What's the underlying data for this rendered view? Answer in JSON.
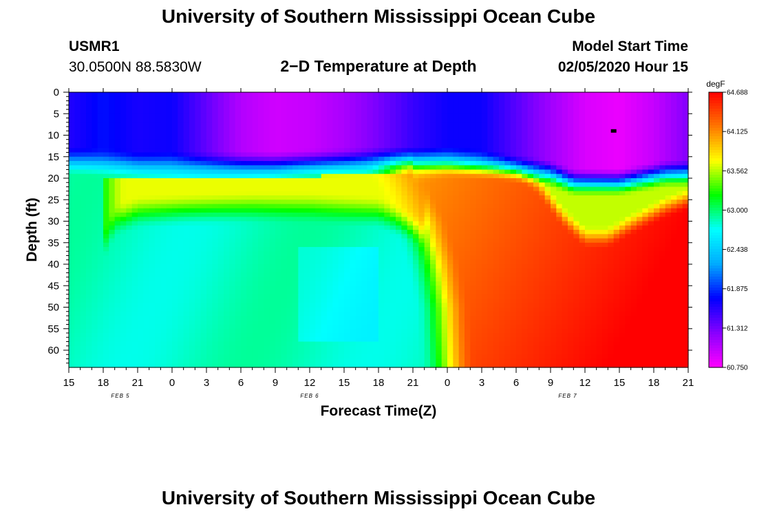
{
  "page": {
    "top_title": "University of Southern Mississippi Ocean Cube",
    "bottom_title": "University of Southern Mississippi Ocean Cube"
  },
  "station": {
    "id": "USMR1",
    "coords": "30.0500N 88.5830W"
  },
  "model": {
    "start_label": "Model Start Time",
    "start_value": "02/05/2020 Hour 15"
  },
  "chart_data": {
    "type": "heatmap",
    "title": "2−D Temperature at Depth",
    "xlabel": "Forecast Time(Z)",
    "ylabel": "Depth (ft)",
    "unit": "degF",
    "x_ticks": [
      "15",
      "18",
      "21",
      "0",
      "3",
      "6",
      "9",
      "12",
      "15",
      "18",
      "21",
      "0",
      "3",
      "6",
      "9",
      "12",
      "15",
      "18",
      "21"
    ],
    "x_hours": [
      0,
      3,
      6,
      9,
      12,
      15,
      18,
      21,
      24,
      27,
      30,
      33,
      36,
      39,
      42,
      45,
      48,
      51,
      54
    ],
    "date_labels": [
      {
        "label": "FEB 5",
        "hour": 4.5
      },
      {
        "label": "FEB 6",
        "hour": 21
      },
      {
        "label": "FEB 7",
        "hour": 43.5
      }
    ],
    "y_ticks": [
      0,
      5,
      10,
      15,
      20,
      25,
      30,
      35,
      40,
      45,
      50,
      55,
      60
    ],
    "ylim": [
      0,
      64
    ],
    "xlim": [
      0,
      54
    ],
    "colorbar": {
      "min": 60.75,
      "max": 64.688,
      "labels": [
        "64.688",
        "64.125",
        "63.562",
        "63.000",
        "62.438",
        "61.875",
        "61.312",
        "60.750"
      ],
      "colors": [
        "#ff00ff",
        "#8800ff",
        "#0000ff",
        "#00aaff",
        "#00ffff",
        "#00ff00",
        "#ffff00",
        "#ff7700",
        "#ff0000"
      ]
    },
    "marker": {
      "hour": 47.5,
      "depth": 9
    }
  }
}
